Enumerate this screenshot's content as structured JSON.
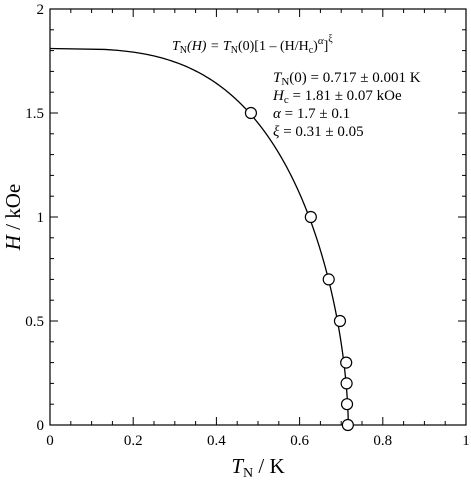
{
  "chart_data": {
    "type": "scatter",
    "title": "",
    "xlabel": {
      "symbol": "T",
      "sub": "N",
      "unit": "K"
    },
    "ylabel": {
      "symbol": "H",
      "unit": "kOe"
    },
    "xlim": [
      0,
      1
    ],
    "ylim": [
      0,
      2
    ],
    "x_ticks": [
      "0",
      "0.2",
      "0.4",
      "0.6",
      "0.8",
      "1"
    ],
    "y_ticks": [
      "0",
      "0.5",
      "1",
      "1.5",
      "2"
    ],
    "grid": false,
    "legend": "none",
    "points": {
      "x": [
        0.716,
        0.714,
        0.713,
        0.712,
        0.697,
        0.67,
        0.627,
        0.483
      ],
      "y": [
        0.0,
        0.1,
        0.2,
        0.3,
        0.5,
        0.7,
        1.0,
        1.5
      ]
    },
    "fit": {
      "TN0": 0.717,
      "Hc": 1.81,
      "alpha": 1.7,
      "xi": 0.31
    },
    "formula": {
      "lhs_sym": "T",
      "lhs_sub": "N",
      "lhs_arg": "(H) = ",
      "rhs_sym": "T",
      "rhs_sub": "N",
      "rhs_arg": "(0)[1 – (H/H",
      "c_sub": "c",
      "close": ")",
      "alpha": "α",
      "bracket": "]",
      "xi": "ξ"
    },
    "annotations": [
      {
        "sym": "T",
        "sub": "N",
        "text": "(0) = 0.717 ± 0.001 K"
      },
      {
        "sym": "H",
        "sub": "c",
        "text": " = 1.81 ± 0.07 kOe"
      },
      {
        "sym": "α",
        "sub": "",
        "text": " = 1.7 ± 0.1"
      },
      {
        "sym": "ξ",
        "sub": "",
        "text": " = 0.31 ± 0.05"
      }
    ]
  }
}
